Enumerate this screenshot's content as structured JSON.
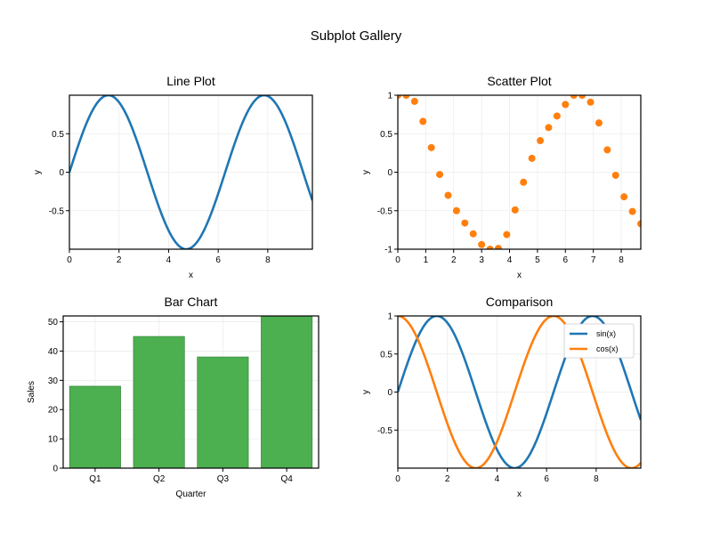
{
  "figure": {
    "title": "Subplot Gallery"
  },
  "chart_data": [
    {
      "type": "line",
      "title": "Line Plot",
      "xlabel": "x",
      "ylabel": "y",
      "xlim": [
        0,
        9.8
      ],
      "ylim": [
        -1,
        1
      ],
      "grid": true,
      "xticks": [
        0,
        2,
        4,
        6,
        8
      ],
      "yticks": [
        -0.5,
        0,
        0.5
      ],
      "series": [
        {
          "function": "sin(x)",
          "color": "#1f77b4",
          "x": [
            0,
            0.5,
            1,
            1.5708,
            2,
            2.5,
            3,
            3.5,
            4,
            4.7124,
            5,
            5.5,
            6,
            6.5,
            7,
            7.854,
            8.5,
            9,
            9.5,
            9.8
          ],
          "y": [
            0,
            0.479,
            0.841,
            1,
            0.909,
            0.598,
            0.141,
            -0.351,
            -0.757,
            -1,
            -0.959,
            -0.706,
            -0.279,
            0.215,
            0.657,
            1,
            0.798,
            0.412,
            -0.075,
            -0.366
          ]
        }
      ]
    },
    {
      "type": "scatter",
      "title": "Scatter Plot",
      "xlabel": "x",
      "ylabel": "y",
      "xlim": [
        0,
        8.7
      ],
      "ylim": [
        -1,
        1
      ],
      "grid": true,
      "xticks": [
        0,
        1,
        2,
        3,
        4,
        5,
        6,
        7,
        8
      ],
      "yticks": [
        -1,
        -0.5,
        0,
        0.5,
        1
      ],
      "series": [
        {
          "color": "#ff7f0e",
          "x": [
            0,
            0.3,
            0.6,
            0.9,
            1.2,
            1.5,
            1.8,
            2.1,
            2.4,
            2.7,
            3.0,
            3.3,
            3.6,
            3.9,
            4.2,
            4.5,
            4.8,
            5.1,
            5.4,
            5.7,
            6.0,
            6.3,
            6.6,
            6.9,
            7.2,
            7.5,
            7.8,
            8.1,
            8.4,
            8.7
          ],
          "y": [
            1.0,
            1.0,
            0.92,
            0.66,
            0.32,
            -0.03,
            -0.3,
            -0.5,
            -0.66,
            -0.8,
            -0.94,
            -1.0,
            -0.99,
            -0.81,
            -0.49,
            -0.13,
            0.18,
            0.41,
            0.58,
            0.73,
            0.88,
            1.0,
            1.0,
            0.91,
            0.64,
            0.29,
            -0.04,
            -0.32,
            -0.51,
            -0.67
          ]
        }
      ]
    },
    {
      "type": "bar",
      "title": "Bar Chart",
      "xlabel": "Quarter",
      "ylabel": "Sales",
      "categories": [
        "Q1",
        "Q2",
        "Q3",
        "Q4"
      ],
      "values": [
        28,
        45,
        38,
        52
      ],
      "color": "#4caf50",
      "ylim": [
        0,
        52
      ],
      "grid": true,
      "yticks": [
        0,
        10,
        20,
        30,
        40,
        50
      ]
    },
    {
      "type": "line",
      "title": "Comparison",
      "xlabel": "x",
      "ylabel": "y",
      "xlim": [
        0,
        9.8
      ],
      "ylim": [
        -1,
        1
      ],
      "grid": true,
      "xticks": [
        0,
        2,
        4,
        6,
        8
      ],
      "yticks": [
        -0.5,
        0,
        0.5,
        1
      ],
      "legend": "top-right",
      "series": [
        {
          "name": "sin(x)",
          "function": "sin(x)",
          "color": "#1f77b4",
          "x": [
            0,
            0.5,
            1,
            1.5708,
            2,
            2.5,
            3,
            3.5,
            4,
            4.7124,
            5,
            5.5,
            6,
            6.5,
            7,
            7.854,
            8.5,
            9,
            9.5,
            9.8
          ],
          "y": [
            0,
            0.479,
            0.841,
            1,
            0.909,
            0.598,
            0.141,
            -0.351,
            -0.757,
            -1,
            -0.959,
            -0.706,
            -0.279,
            0.215,
            0.657,
            1,
            0.798,
            0.412,
            -0.075,
            -0.366
          ]
        },
        {
          "name": "cos(x)",
          "function": "cos(x)",
          "color": "#ff7f0e",
          "x": [
            0,
            0.5,
            1,
            1.5708,
            2,
            2.5,
            3.1416,
            3.5,
            4,
            4.5,
            5,
            5.5,
            6.2832,
            6.5,
            7,
            7.5,
            8,
            8.5,
            9.4248,
            9.8
          ],
          "y": [
            1,
            0.878,
            0.54,
            0,
            -0.416,
            -0.801,
            -1,
            -0.936,
            -0.654,
            -0.211,
            0.284,
            0.709,
            1,
            0.977,
            0.754,
            0.347,
            -0.146,
            -0.602,
            -1,
            -0.93
          ]
        }
      ]
    }
  ]
}
